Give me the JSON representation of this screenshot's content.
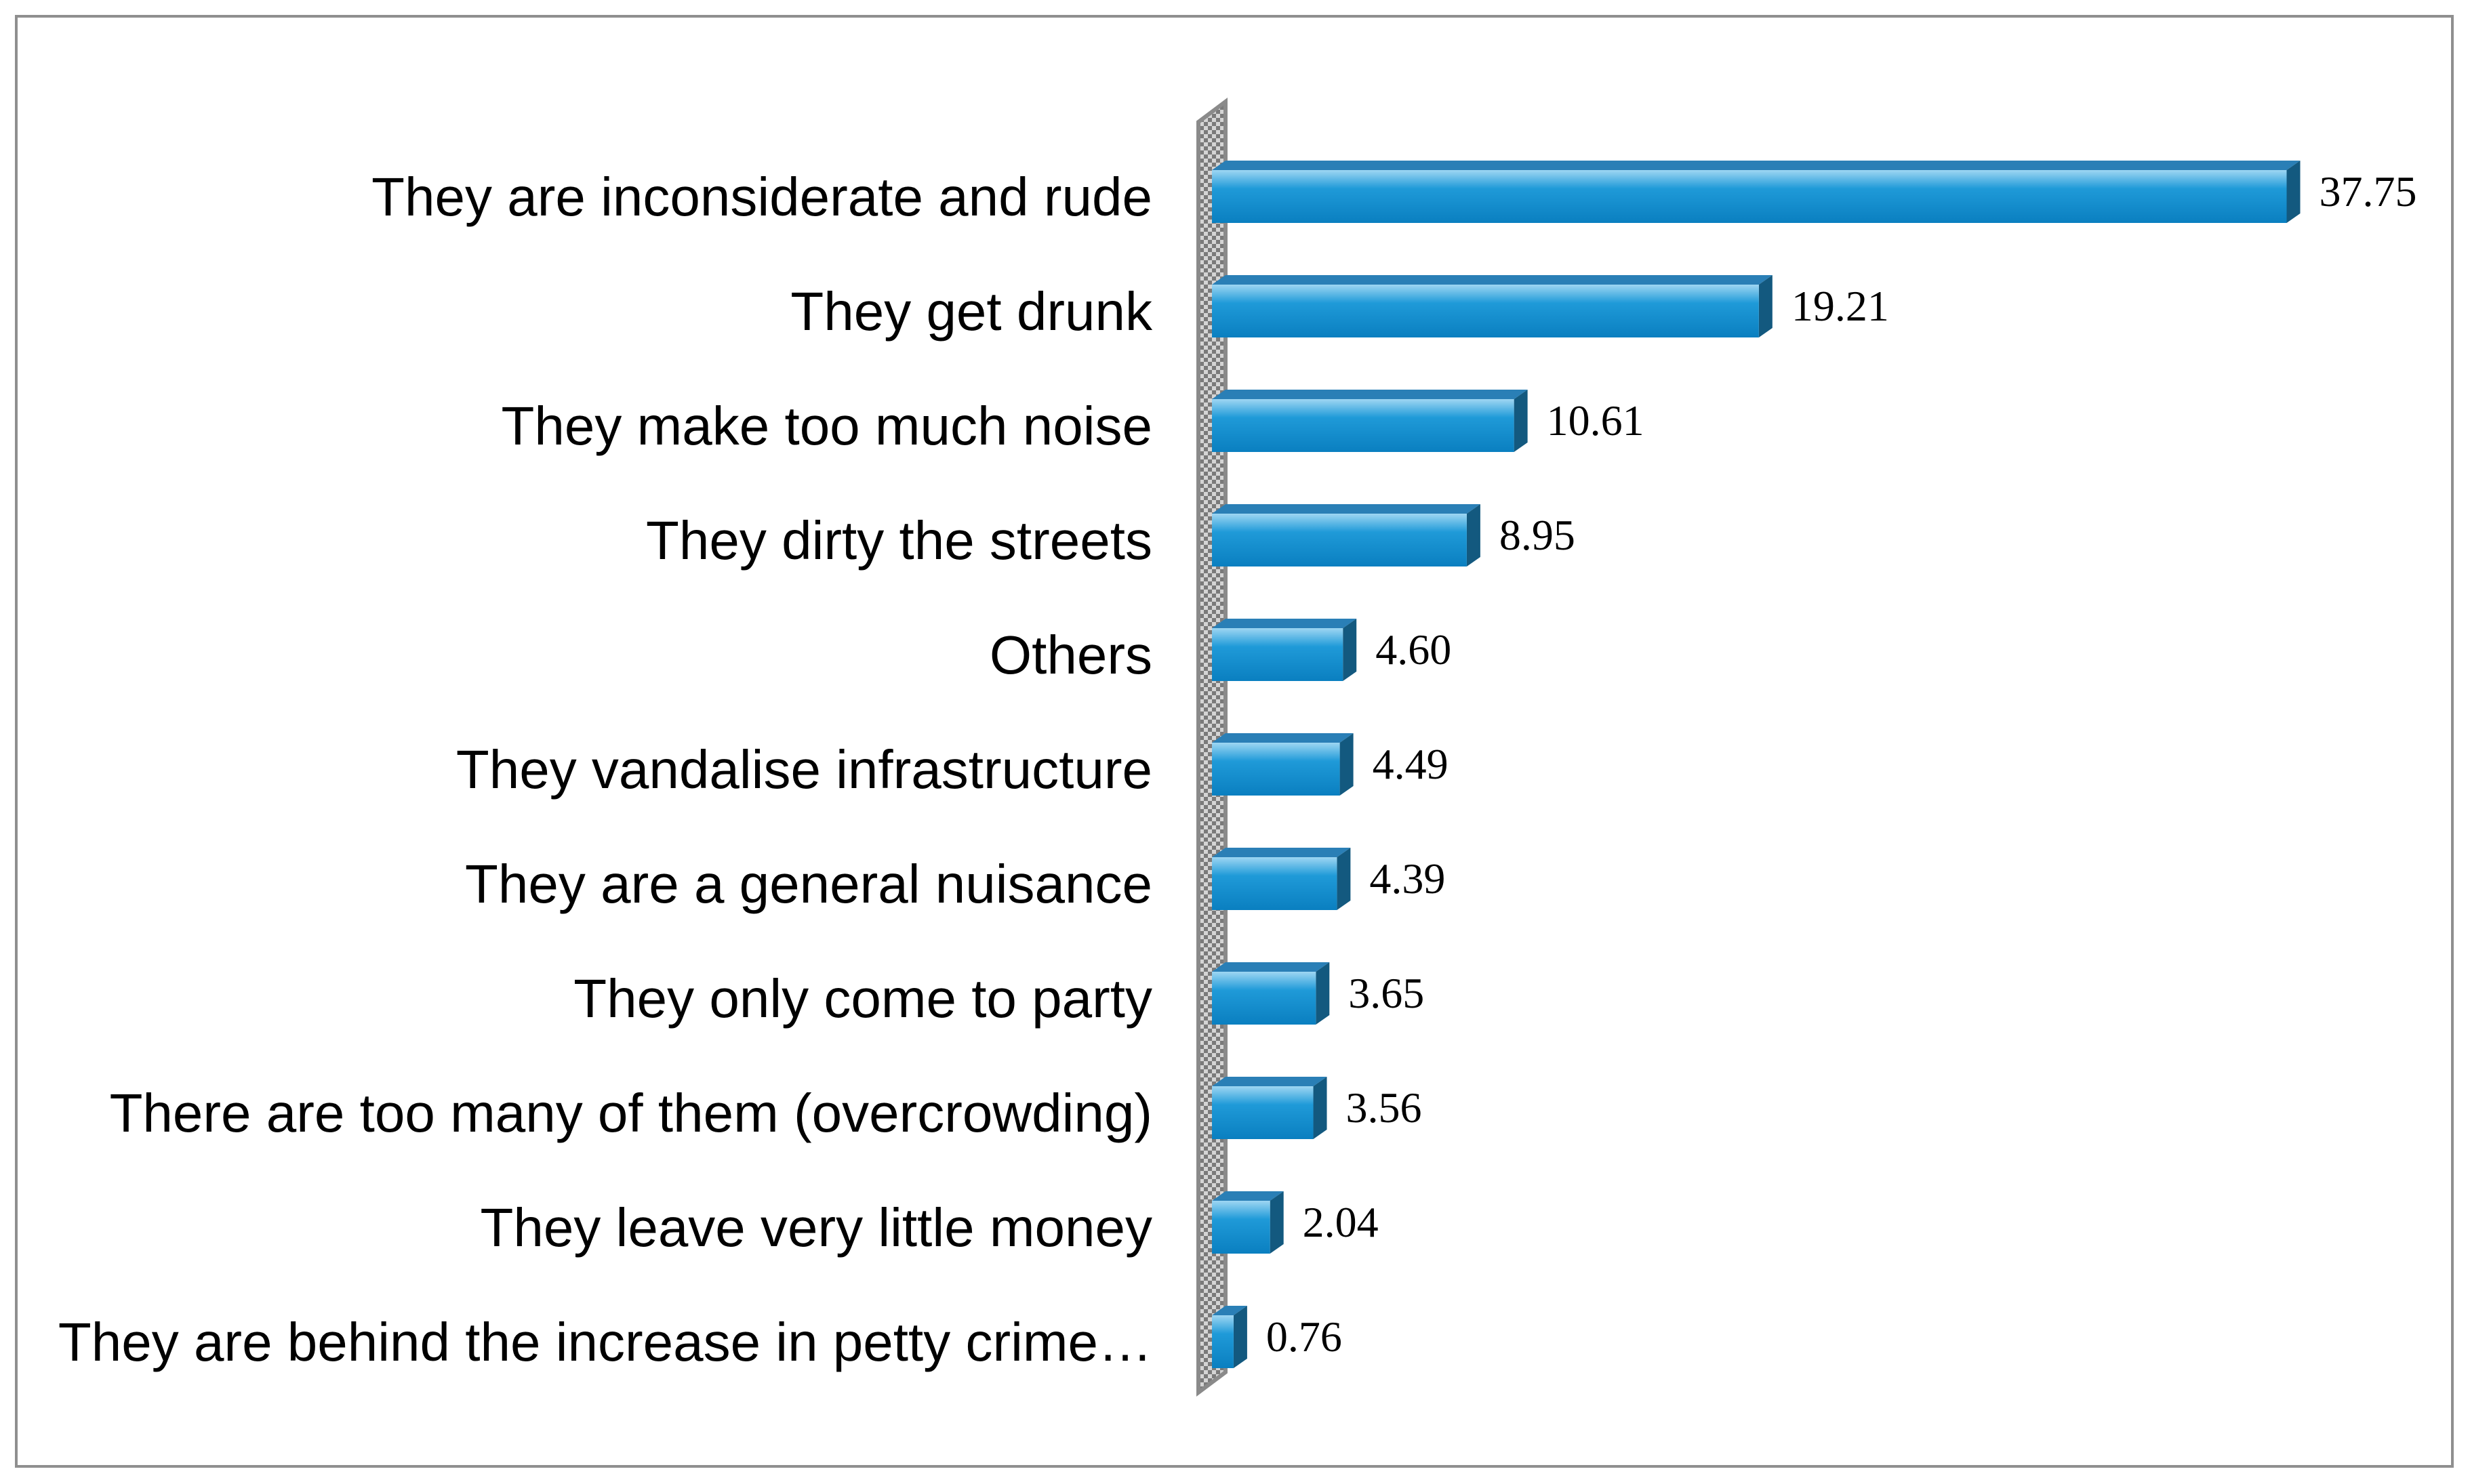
{
  "chart_data": {
    "type": "bar",
    "orientation": "horizontal",
    "style": "3d",
    "categories": [
      "They are inconsiderate and rude",
      "They get drunk",
      "They make too much noise",
      "They dirty the streets",
      "Others",
      "They vandalise infrastructure",
      "They are a general nuisance",
      "They only come to party",
      "There are too many of them (overcrowding)",
      "They leave very little money",
      "They are behind the increase in petty crime…"
    ],
    "values": [
      37.75,
      19.21,
      10.61,
      8.95,
      4.6,
      4.49,
      4.39,
      3.65,
      3.56,
      2.04,
      0.76
    ],
    "value_labels": [
      "37.75",
      "19.21",
      "10.61",
      "8.95",
      "4.60",
      "4.49",
      "4.39",
      "3.65",
      "3.56",
      "2.04",
      "0.76"
    ],
    "xlim": [
      0,
      40
    ],
    "title": "",
    "xlabel": "",
    "ylabel": "",
    "grid": false,
    "legend": "none",
    "colors": {
      "bar_front": "#1f9ad8",
      "bar_top": "#2a7fb6",
      "bar_side": "#13597f",
      "wall": "#8a8a8a",
      "frame": "#8f8f8f"
    }
  }
}
